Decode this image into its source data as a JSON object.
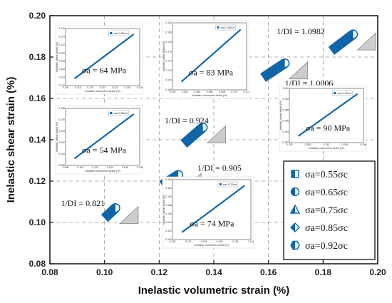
{
  "chart_data": {
    "type": "scatter",
    "xlabel": "Inelastic volumetric strain (%)",
    "ylabel": "Inelastic shear strain (%)",
    "xlim": [
      0.08,
      0.2
    ],
    "ylim": [
      0.08,
      0.2
    ],
    "x_ticks": [
      "0.08",
      "0.10",
      "0.12",
      "0.14",
      "0.16",
      "0.18",
      "0.20"
    ],
    "y_ticks": [
      "0.08",
      "0.10",
      "0.12",
      "0.14",
      "0.16",
      "0.18",
      "0.20"
    ],
    "grid": "dashed",
    "series": [
      {
        "name": "σa=0.55σc",
        "marker": "half-square",
        "x": [
          0.1,
          0.104
        ],
        "y": [
          0.102,
          0.107
        ]
      },
      {
        "name": "σa=0.65σc",
        "marker": "half-circle",
        "x": [
          0.121,
          0.127
        ],
        "y": [
          0.118,
          0.123
        ]
      },
      {
        "name": "σa=0.75σc",
        "marker": "half-triangle",
        "x": [
          0.129,
          0.136
        ],
        "y": [
          0.138,
          0.146
        ]
      },
      {
        "name": "σa=0.85σc",
        "marker": "half-diamond",
        "x": [
          0.158,
          0.166
        ],
        "y": [
          0.17,
          0.177
        ]
      },
      {
        "name": "σa=0.92σc",
        "marker": "half-hexagon",
        "x": [
          0.183,
          0.191
        ],
        "y": [
          0.183,
          0.191
        ]
      }
    ],
    "annotations": [
      {
        "text": "1/DI = 0.821",
        "x": 0.084,
        "y": 0.108
      },
      {
        "text": "1/DI = 0.905",
        "x": 0.134,
        "y": 0.125
      },
      {
        "text": "1/DI = 0.924",
        "x": 0.122,
        "y": 0.148
      },
      {
        "text": "1/DI = 1.0006",
        "x": 0.166,
        "y": 0.166
      },
      {
        "text": "1/DI = 1.0982",
        "x": 0.163,
        "y": 0.191
      }
    ],
    "legend": {
      "placement": "bottom-right",
      "entries": [
        "σa=0.55σc",
        "σa=0.65σc",
        "σa=0.75σc",
        "σa=0.85σc",
        "σa=0.92σc"
      ]
    },
    "insets": [
      {
        "label": "σa = 64 MPa",
        "legend": "σa=0.65σa",
        "xlabel": "Inelastic volumetric strain (%)",
        "ylabel": "Inelastic shear strain (%)",
        "x_ticks": [
          "0.116",
          "0.118",
          "0.120",
          "0.122",
          "0.124",
          "0.126",
          "0.128"
        ],
        "y_ticks": [
          "0.112",
          "0.114",
          "0.116",
          "0.118",
          "0.120",
          "0.122",
          "0.124",
          "0.126"
        ]
      },
      {
        "label": "σa = 83 MPa",
        "legend": "σa=0.85σa",
        "xlabel": "Inelastic volumetric strain (%)",
        "ylabel": "Inelastic shear strain (%)",
        "x_ticks": [
          "0.160",
          "0.162",
          "0.164",
          "0.166",
          "0.168",
          "0.170",
          "0.172"
        ],
        "y_ticks": [
          "0.168",
          "0.170",
          "0.172",
          "0.174",
          "0.176",
          "0.178",
          "0.180",
          "0.182"
        ]
      },
      {
        "label": "σa = 54 MPa",
        "legend": "σa=0.55σa",
        "xlabel": "Inelastic volumetric strain (%)",
        "ylabel": "Inelastic shear strain (%)",
        "x_ticks": [
          "0.098",
          "0.100",
          "0.102",
          "0.104",
          "0.106",
          "0.108"
        ],
        "y_ticks": [
          "0.098",
          "0.100",
          "0.102",
          "0.104",
          "0.106",
          "0.108"
        ]
      },
      {
        "label": "σa = 90 MPa",
        "legend": "σa=0.92σa",
        "xlabel": "Inelastic volumetric strain (%)",
        "ylabel": "Inelastic shear strain (%)",
        "x_ticks": [
          "0.178",
          "0.180",
          "0.182",
          "0.184",
          "0.186"
        ],
        "y_ticks": [
          "0.182",
          "0.184",
          "0.186",
          "0.188",
          "0.190",
          "0.192"
        ]
      },
      {
        "label": "σa = 74 MPa",
        "legend": "σa=0.75σa",
        "xlabel": "Inelastic volumetric strain (%)",
        "ylabel": "Inelastic shear strain (%)",
        "x_ticks": [
          "0.130",
          "0.132",
          "0.134",
          "0.136",
          "0.138",
          "0.140"
        ],
        "y_ticks": [
          "0.140",
          "0.142",
          "0.144",
          "0.146",
          "0.148",
          "0.150",
          "0.152",
          "0.154"
        ]
      }
    ]
  },
  "colors": {
    "series": "#1166aa",
    "grid": "#999999",
    "triangle": "#cccccc"
  }
}
